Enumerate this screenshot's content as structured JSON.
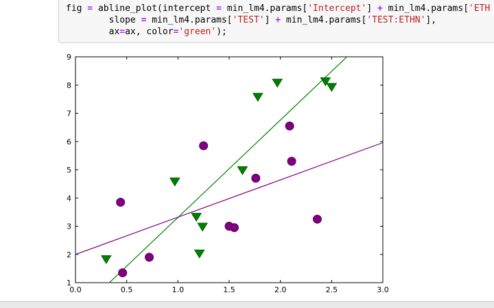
{
  "code_cell": {
    "background": "#f7f7f7",
    "border": "#cfcfcf",
    "colors": {
      "plain": "#000000",
      "operator": "#AA22FF",
      "string": "#BA2121"
    },
    "lines": [
      [
        {
          "t": "p",
          "s": "fig "
        },
        {
          "t": "o",
          "s": "="
        },
        {
          "t": "p",
          "s": " abline_plot(intercept "
        },
        {
          "t": "o",
          "s": "="
        },
        {
          "t": "p",
          "s": " min_lm4.params["
        },
        {
          "t": "s",
          "s": "'Intercept'"
        },
        {
          "t": "p",
          "s": "] "
        },
        {
          "t": "o",
          "s": "+"
        },
        {
          "t": "p",
          "s": " min_lm4.params["
        },
        {
          "t": "s",
          "s": "'ETH"
        }
      ],
      [
        {
          "t": "p",
          "s": "        slope "
        },
        {
          "t": "o",
          "s": "="
        },
        {
          "t": "p",
          "s": " min_lm4.params["
        },
        {
          "t": "s",
          "s": "'TEST'"
        },
        {
          "t": "p",
          "s": "] "
        },
        {
          "t": "o",
          "s": "+"
        },
        {
          "t": "p",
          "s": " min_lm4.params["
        },
        {
          "t": "s",
          "s": "'TEST:ETHN'"
        },
        {
          "t": "p",
          "s": "],"
        }
      ],
      [
        {
          "t": "p",
          "s": "        ax"
        },
        {
          "t": "o",
          "s": "="
        },
        {
          "t": "p",
          "s": "ax, color"
        },
        {
          "t": "o",
          "s": "="
        },
        {
          "t": "s",
          "s": "'green'"
        },
        {
          "t": "p",
          "s": ");"
        }
      ]
    ]
  },
  "chart_data": {
    "type": "scatter",
    "title": "",
    "xlabel": "",
    "ylabel": "",
    "xlim": [
      0.0,
      3.0
    ],
    "ylim": [
      1,
      9
    ],
    "grid": false,
    "legend": "none",
    "xticks": [
      {
        "v": 0.0,
        "label": "0.0"
      },
      {
        "v": 0.5,
        "label": "0.5"
      },
      {
        "v": 1.0,
        "label": "1.0"
      },
      {
        "v": 1.5,
        "label": "1.5"
      },
      {
        "v": 2.0,
        "label": "2.0"
      },
      {
        "v": 2.5,
        "label": "2.5"
      },
      {
        "v": 3.0,
        "label": "3.0"
      }
    ],
    "yticks": [
      {
        "v": 1,
        "label": "1"
      },
      {
        "v": 2,
        "label": "2"
      },
      {
        "v": 3,
        "label": "3"
      },
      {
        "v": 4,
        "label": "4"
      },
      {
        "v": 5,
        "label": "5"
      },
      {
        "v": 6,
        "label": "6"
      },
      {
        "v": 7,
        "label": "7"
      },
      {
        "v": 8,
        "label": "8"
      },
      {
        "v": 9,
        "label": "9"
      }
    ],
    "series": [
      {
        "name": "purple-circles",
        "marker": "circle",
        "color": "#800080",
        "edge": "#5c005c",
        "points": [
          [
            0.44,
            3.85
          ],
          [
            0.46,
            1.35
          ],
          [
            0.72,
            1.9
          ],
          [
            1.25,
            5.85
          ],
          [
            1.5,
            3.0
          ],
          [
            1.55,
            2.95
          ],
          [
            1.76,
            4.7
          ],
          [
            2.09,
            6.55
          ],
          [
            2.11,
            5.3
          ],
          [
            2.36,
            3.25
          ]
        ]
      },
      {
        "name": "green-triangles",
        "marker": "triangle-down",
        "color": "#008000",
        "edge": "#006000",
        "points": [
          [
            0.3,
            1.85
          ],
          [
            0.97,
            4.6
          ],
          [
            1.18,
            3.35
          ],
          [
            1.24,
            3.0
          ],
          [
            1.21,
            2.05
          ],
          [
            1.63,
            5.0
          ],
          [
            1.78,
            7.6
          ],
          [
            1.97,
            8.1
          ],
          [
            2.44,
            8.15
          ],
          [
            2.5,
            7.95
          ]
        ]
      }
    ],
    "lines": [
      {
        "name": "green-fit-line",
        "color": "#008000",
        "intercept": -0.14,
        "slope": 3.45
      },
      {
        "name": "purple-fit-line",
        "color": "#800080",
        "intercept": 2.0,
        "slope": 1.32
      }
    ]
  }
}
